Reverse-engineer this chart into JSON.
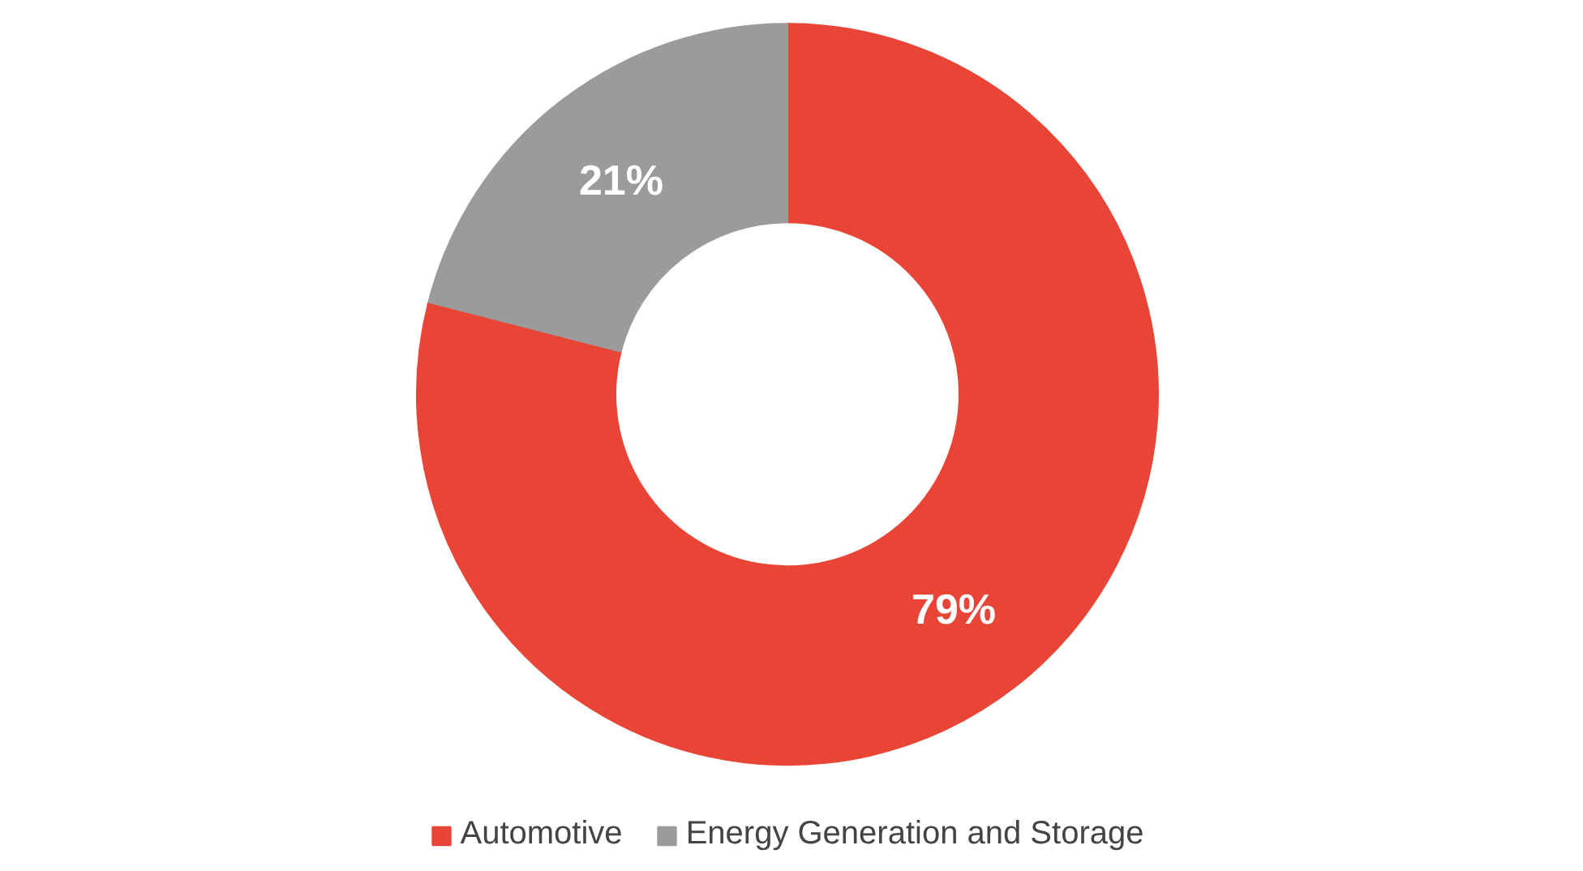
{
  "chart_data": {
    "type": "donut",
    "categories": [
      "Automotive",
      "Energy Generation and Storage"
    ],
    "values": [
      79,
      21
    ],
    "colors": [
      "#e94537",
      "#9b9b9b"
    ],
    "value_labels": [
      "79%",
      "21%"
    ],
    "legend": "bottom"
  }
}
